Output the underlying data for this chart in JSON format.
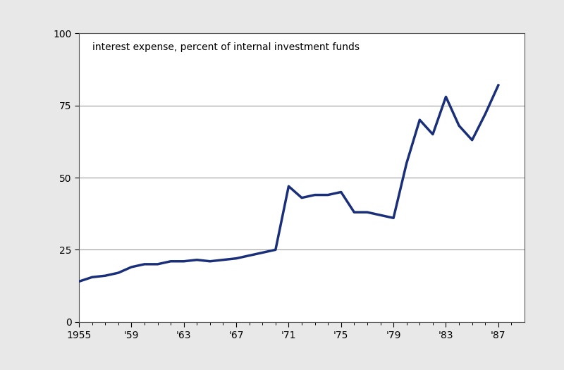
{
  "title": "interest expense, percent of internal investment funds",
  "line_color": "#1a2f7a",
  "line_width": 2.5,
  "background_color": "#ffffff",
  "figure_bg": "#e8e8e8",
  "xlim": [
    1955,
    1989
  ],
  "ylim": [
    0,
    100
  ],
  "yticks": [
    0,
    25,
    50,
    75,
    100
  ],
  "xtick_labels": [
    "1955",
    "'59",
    "'63",
    "'67",
    "'71",
    "'75",
    "'79",
    "'83",
    "'87"
  ],
  "xtick_positions": [
    1955,
    1959,
    1963,
    1967,
    1971,
    1975,
    1979,
    1983,
    1987
  ],
  "years": [
    1955,
    1956,
    1957,
    1958,
    1959,
    1960,
    1961,
    1962,
    1963,
    1964,
    1965,
    1966,
    1967,
    1968,
    1969,
    1970,
    1971,
    1972,
    1973,
    1974,
    1975,
    1976,
    1977,
    1978,
    1979,
    1980,
    1981,
    1982,
    1983,
    1984,
    1985,
    1986,
    1987
  ],
  "values": [
    14,
    15.5,
    16,
    17,
    19,
    20,
    20,
    21,
    21,
    21.5,
    21,
    21.5,
    22,
    23,
    24,
    25,
    47,
    43,
    44,
    44,
    45,
    38,
    38,
    37,
    36,
    55,
    70,
    65,
    78,
    68,
    63,
    72,
    82
  ],
  "grid_color": "#999999",
  "grid_linewidth": 0.8,
  "title_fontsize": 10,
  "tick_fontsize": 10,
  "spine_color": "#555555"
}
